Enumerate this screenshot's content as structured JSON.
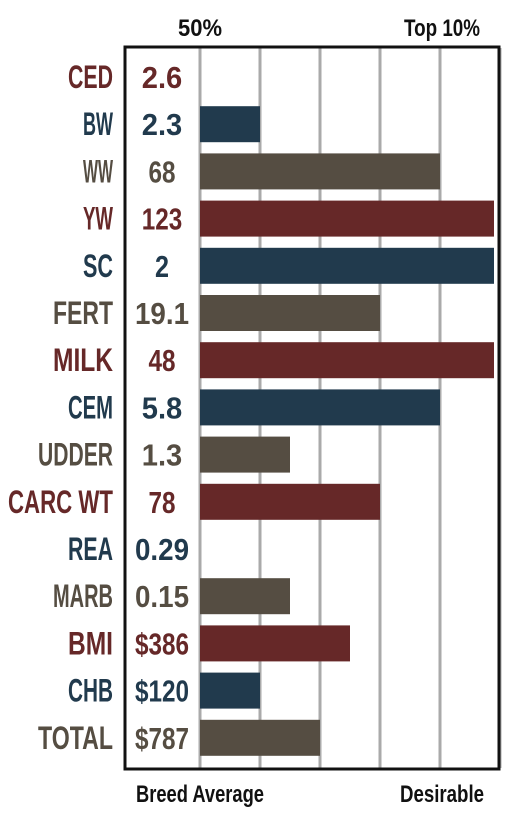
{
  "chart_data": {
    "type": "bar",
    "orientation": "horizontal",
    "title": "",
    "top_labels": {
      "left": "50%",
      "right": "Top 10%"
    },
    "bottom_labels": {
      "left": "Breed Average",
      "right": "Desirable"
    },
    "grid": true,
    "xlim": [
      0,
      5
    ],
    "categories": [
      "CED",
      "BW",
      "WW",
      "YW",
      "SC",
      "FERT",
      "MILK",
      "CEM",
      "UDDER",
      "CARC WT",
      "REA",
      "MARB",
      "BMI",
      "CHB",
      "TOTAL"
    ],
    "value_labels": [
      "2.6",
      "2.3",
      "68",
      "123",
      "2",
      "19.1",
      "48",
      "5.8",
      "1.3",
      "78",
      "0.29",
      "0.15",
      "$386",
      "$120",
      "$787"
    ],
    "values": [
      0,
      1.0,
      4.0,
      4.9,
      4.9,
      3.0,
      4.9,
      4.0,
      1.5,
      3.0,
      0,
      1.5,
      2.5,
      1.0,
      2.0
    ],
    "colors": [
      "#662828",
      "#213a4d",
      "#554d42",
      "#662828",
      "#213a4d",
      "#554d42",
      "#662828",
      "#213a4d",
      "#554d42",
      "#662828",
      "#213a4d",
      "#554d42",
      "#662828",
      "#213a4d",
      "#554d42"
    ]
  }
}
